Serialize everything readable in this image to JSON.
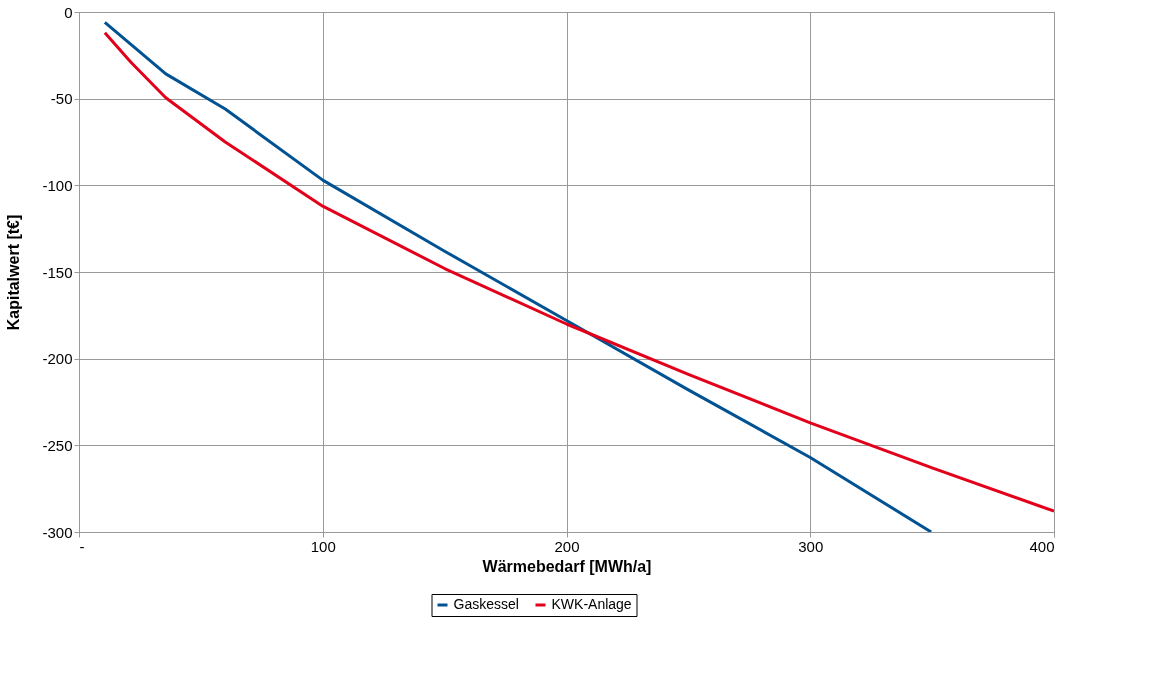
{
  "chart_data": {
    "type": "line",
    "xlabel": "Wärmebedarf [MWh/a]",
    "ylabel": "Kapitalwert [t€]",
    "xlim": [
      0,
      400
    ],
    "xticks": [
      {
        "value": 0,
        "label": "-"
      },
      100,
      200,
      300,
      400
    ],
    "ylim": [
      -300,
      0
    ],
    "yticks": [
      -300,
      -250,
      -200,
      -150,
      -100,
      -50,
      0
    ],
    "grid": true,
    "legend": "bottom",
    "marker": "none",
    "line_style": "solid",
    "series": [
      {
        "name": "Gaskessel",
        "color": "#005293",
        "x": [
          10.6,
          35.6,
          60,
          100,
          150,
          200,
          250,
          300,
          349.6
        ],
        "values": [
          -6,
          -35.7,
          -56,
          -97,
          -138,
          -178,
          -218,
          -257,
          -300
        ]
      },
      {
        "name": "KWK-Anlage",
        "color": "#e2001a",
        "x": [
          10.6,
          21.3,
          35.6,
          60,
          100,
          150,
          200,
          250,
          300,
          350,
          400
        ],
        "values": [
          -12,
          -29,
          -49.5,
          -75,
          -112,
          -148,
          -180,
          -209,
          -237,
          -263,
          -288
        ]
      }
    ]
  }
}
